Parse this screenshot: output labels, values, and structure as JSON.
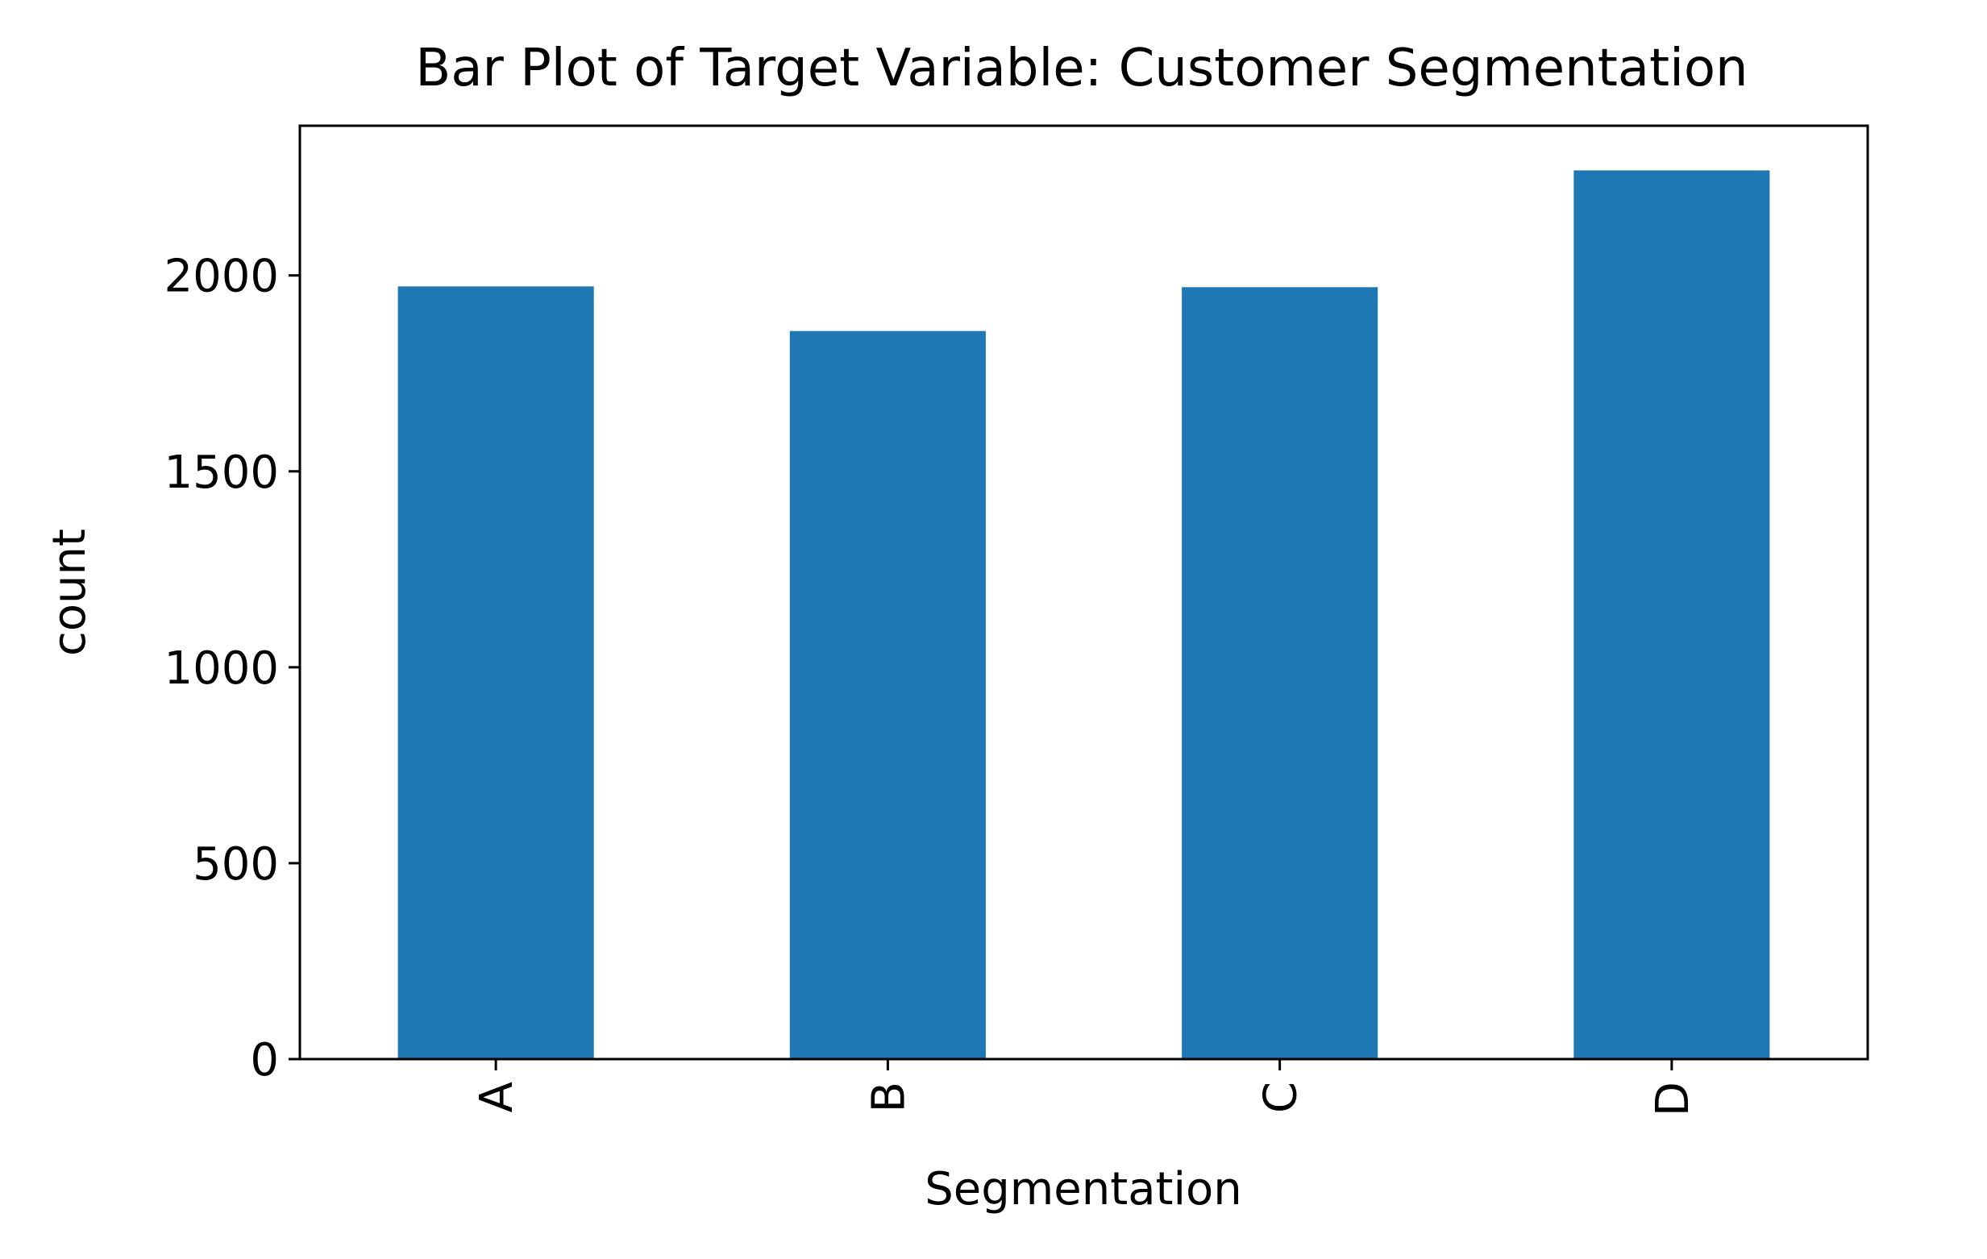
{
  "chart_data": {
    "type": "bar",
    "title": "Bar Plot of Target Variable: Customer Segmentation",
    "xlabel": "Segmentation",
    "ylabel": "count",
    "categories": [
      "A",
      "B",
      "C",
      "D"
    ],
    "values": [
      1972,
      1858,
      1970,
      2268
    ],
    "ylim": [
      0,
      2382
    ],
    "yticks": [
      0,
      500,
      1000,
      1500,
      2000
    ],
    "bar_color": "#1f77b4",
    "grid": false,
    "legend": "none"
  }
}
